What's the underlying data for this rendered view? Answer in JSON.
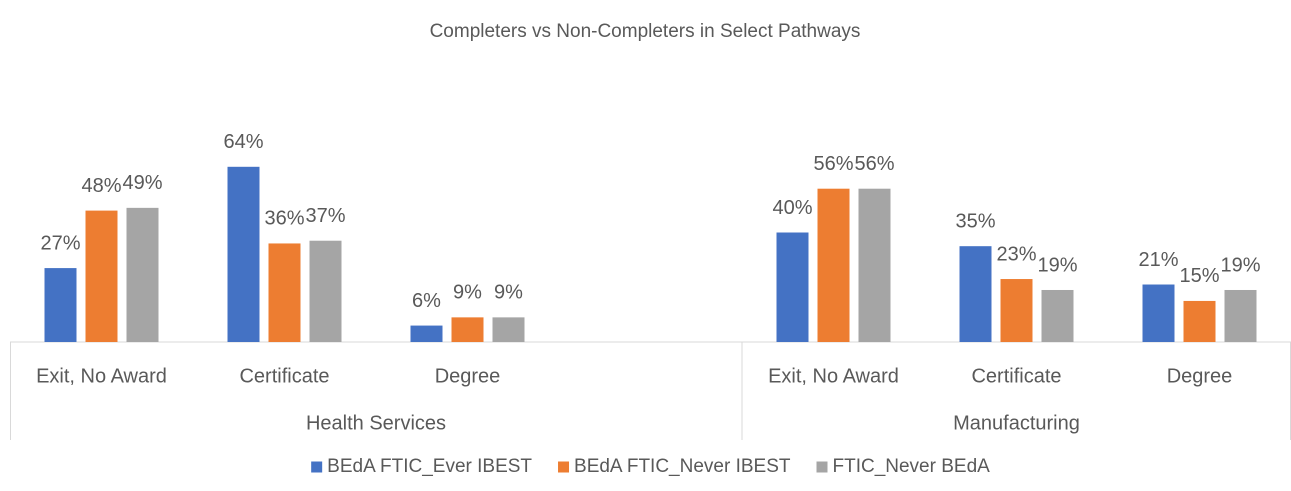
{
  "chart_data": {
    "type": "bar",
    "title": "Completers vs Non-Completers in Select Pathways",
    "categories": [
      "Exit, No Award",
      "Certificate",
      "Degree",
      null,
      "Exit, No Award",
      "Certificate",
      "Degree"
    ],
    "groups": [
      {
        "name": "Health Services",
        "span": 4
      },
      {
        "name": "Manufacturing",
        "span": 3
      }
    ],
    "series": [
      {
        "name": "BEdA FTIC_Ever IBEST",
        "color": "#4472c4",
        "values": [
          27,
          64,
          6,
          null,
          40,
          35,
          21
        ],
        "value_labels": [
          "27%",
          "64%",
          "6%",
          null,
          "40%",
          "35%",
          "21%"
        ]
      },
      {
        "name": "BEdA FTIC_Never IBEST",
        "color": "#ed7d31",
        "values": [
          48,
          36,
          9,
          null,
          56,
          23,
          15
        ],
        "value_labels": [
          "48%",
          "36%",
          "9%",
          null,
          "56%",
          "23%",
          "15%"
        ]
      },
      {
        "name": "FTIC_Never BEdA",
        "color": "#a5a5a5",
        "values": [
          49,
          37,
          9,
          null,
          56,
          19,
          19
        ],
        "value_labels": [
          "49%",
          "37%",
          "9%",
          null,
          "56%",
          "19%",
          "19%"
        ]
      }
    ],
    "ylim": [
      0,
      80
    ],
    "legend": "bottom"
  }
}
